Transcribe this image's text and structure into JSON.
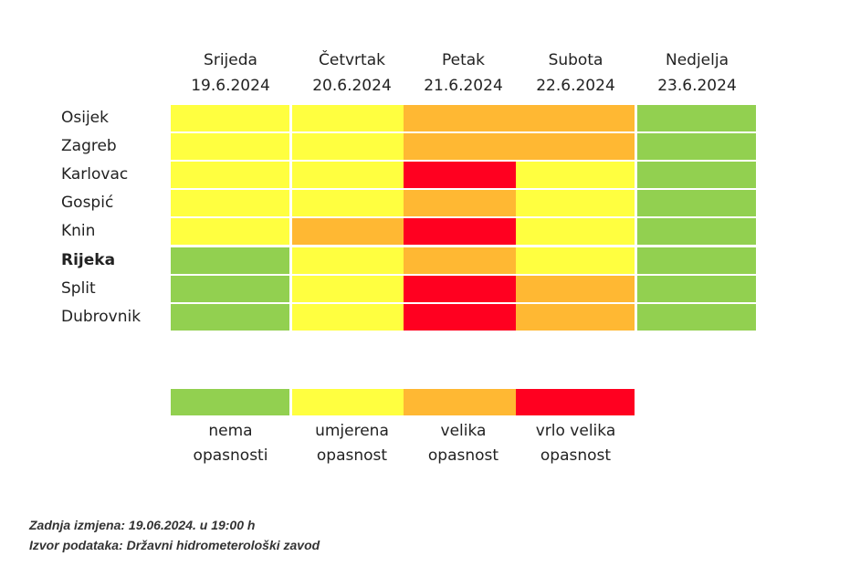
{
  "chart_data": {
    "type": "heatmap",
    "days": [
      {
        "name": "Srijeda",
        "date": "19.6.2024"
      },
      {
        "name": "Četvrtak",
        "date": "20.6.2024"
      },
      {
        "name": "Petak",
        "date": "21.6.2024"
      },
      {
        "name": "Subota",
        "date": "22.6.2024"
      },
      {
        "name": "Nedjelja",
        "date": "23.6.2024"
      }
    ],
    "cities": [
      {
        "name": "Osijek",
        "bold": false
      },
      {
        "name": "Zagreb",
        "bold": false
      },
      {
        "name": "Karlovac",
        "bold": false
      },
      {
        "name": "Gospić",
        "bold": false
      },
      {
        "name": "Knin",
        "bold": false
      },
      {
        "name": "Rijeka",
        "bold": true
      },
      {
        "name": "Split",
        "bold": false
      },
      {
        "name": "Dubrovnik",
        "bold": false
      }
    ],
    "levels": [
      {
        "label_line1": "nema",
        "label_line2": "opasnosti",
        "color": "#92d050"
      },
      {
        "label_line1": "umjerena",
        "label_line2": "opasnost",
        "color": "#ffff40"
      },
      {
        "label_line1": "velika",
        "label_line2": "opasnost",
        "color": "#ffb833"
      },
      {
        "label_line1": "vrlo velika",
        "label_line2": "opasnost",
        "color": "#ff0020"
      }
    ],
    "values": [
      [
        1,
        1,
        2,
        2,
        0
      ],
      [
        1,
        1,
        2,
        2,
        0
      ],
      [
        1,
        1,
        3,
        1,
        0
      ],
      [
        1,
        1,
        2,
        1,
        0
      ],
      [
        1,
        2,
        3,
        1,
        0
      ],
      [
        0,
        1,
        2,
        1,
        0
      ],
      [
        0,
        1,
        3,
        2,
        0
      ],
      [
        0,
        1,
        3,
        2,
        0
      ]
    ]
  },
  "footer": {
    "last_change": "Zadnja izmjena: 19.06.2024. u 19:00 h",
    "source": "Izvor podataka: Državni hidrometerološki zavod"
  }
}
